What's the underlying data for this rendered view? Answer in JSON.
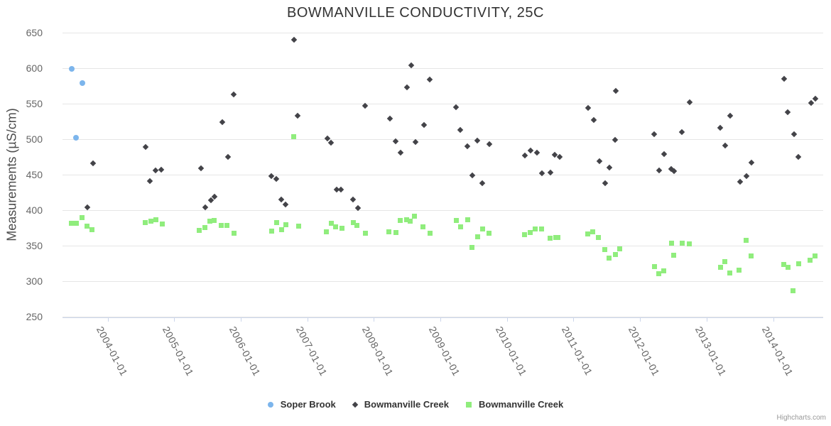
{
  "header": {
    "title": "BOWMANVILLE CONDUCTIVITY, 25C"
  },
  "y_axis": {
    "title": "Measurements (µS/cm)"
  },
  "legend": {
    "items": [
      {
        "label": "Soper Brook",
        "marker": "circle",
        "color": "#7cb5ec"
      },
      {
        "label": "Bowmanville Creek",
        "marker": "diamond",
        "color": "#434348"
      },
      {
        "label": "Bowmanville Creek",
        "marker": "square",
        "color": "#90ed7d"
      }
    ]
  },
  "credit": {
    "label": "Highcharts.com"
  },
  "chart_data": {
    "type": "scatter",
    "title": "BOWMANVILLE CONDUCTIVITY, 25C",
    "xlabel": "",
    "ylabel": "Measurements (µS/cm)",
    "ylim": [
      250,
      650
    ],
    "y_ticks": [
      650,
      600,
      550,
      500,
      450,
      400,
      350,
      300,
      250
    ],
    "x_tick_labels": [
      "2004-01-01",
      "2005-01-01",
      "2006-01-01",
      "2007-01-01",
      "2008-01-01",
      "2009-01-01",
      "2010-01-01",
      "2011-01-01",
      "2012-01-01",
      "2013-01-01",
      "2014-01-01"
    ],
    "x_unit": "decimal-year",
    "grid": true,
    "legend_position": "bottom",
    "series": [
      {
        "name": "Soper Brook",
        "marker": "circle",
        "color": "#7cb5ec",
        "points": [
          [
            2003.46,
            599
          ],
          [
            2003.53,
            502
          ],
          [
            2003.62,
            579
          ]
        ]
      },
      {
        "name": "Bowmanville Creek",
        "marker": "diamond",
        "color": "#434348",
        "points": [
          [
            2003.7,
            404
          ],
          [
            2003.78,
            466
          ],
          [
            2004.57,
            489
          ],
          [
            2004.64,
            441
          ],
          [
            2004.72,
            456
          ],
          [
            2004.81,
            457
          ],
          [
            2005.4,
            459
          ],
          [
            2005.47,
            404
          ],
          [
            2005.55,
            414
          ],
          [
            2005.61,
            419
          ],
          [
            2005.72,
            524
          ],
          [
            2005.81,
            475
          ],
          [
            2005.89,
            563
          ],
          [
            2006.46,
            448
          ],
          [
            2006.53,
            444
          ],
          [
            2006.61,
            415
          ],
          [
            2006.67,
            408
          ],
          [
            2006.8,
            640
          ],
          [
            2006.86,
            533
          ],
          [
            2007.3,
            501
          ],
          [
            2007.36,
            495
          ],
          [
            2007.44,
            429
          ],
          [
            2007.51,
            429
          ],
          [
            2007.69,
            415
          ],
          [
            2007.76,
            403
          ],
          [
            2007.87,
            547
          ],
          [
            2008.24,
            529
          ],
          [
            2008.33,
            497
          ],
          [
            2008.4,
            481
          ],
          [
            2008.5,
            573
          ],
          [
            2008.56,
            604
          ],
          [
            2008.63,
            496
          ],
          [
            2008.75,
            520
          ],
          [
            2008.84,
            584
          ],
          [
            2009.24,
            545
          ],
          [
            2009.3,
            513
          ],
          [
            2009.41,
            490
          ],
          [
            2009.48,
            449
          ],
          [
            2009.55,
            498
          ],
          [
            2009.63,
            438
          ],
          [
            2009.74,
            493
          ],
          [
            2010.27,
            477
          ],
          [
            2010.36,
            484
          ],
          [
            2010.45,
            481
          ],
          [
            2010.53,
            452
          ],
          [
            2010.65,
            453
          ],
          [
            2010.72,
            478
          ],
          [
            2010.79,
            475
          ],
          [
            2011.22,
            544
          ],
          [
            2011.31,
            527
          ],
          [
            2011.39,
            469
          ],
          [
            2011.48,
            438
          ],
          [
            2011.54,
            460
          ],
          [
            2011.63,
            499
          ],
          [
            2011.64,
            568
          ],
          [
            2012.21,
            507
          ],
          [
            2012.29,
            456
          ],
          [
            2012.36,
            479
          ],
          [
            2012.47,
            458
          ],
          [
            2012.51,
            455
          ],
          [
            2012.63,
            510
          ],
          [
            2012.75,
            552
          ],
          [
            2013.21,
            516
          ],
          [
            2013.28,
            491
          ],
          [
            2013.35,
            533
          ],
          [
            2013.5,
            440
          ],
          [
            2013.6,
            448
          ],
          [
            2013.67,
            467
          ],
          [
            2014.17,
            585
          ],
          [
            2014.22,
            538
          ],
          [
            2014.32,
            507
          ],
          [
            2014.38,
            475
          ],
          [
            2014.57,
            551
          ],
          [
            2014.64,
            557
          ]
        ]
      },
      {
        "name": "Bowmanville Creek",
        "marker": "square",
        "color": "#90ed7d",
        "points": [
          [
            2003.46,
            382
          ],
          [
            2003.53,
            382
          ],
          [
            2003.62,
            390
          ],
          [
            2003.69,
            378
          ],
          [
            2003.77,
            373
          ],
          [
            2004.57,
            383
          ],
          [
            2004.65,
            385
          ],
          [
            2004.73,
            387
          ],
          [
            2004.82,
            381
          ],
          [
            2005.38,
            372
          ],
          [
            2005.46,
            376
          ],
          [
            2005.54,
            385
          ],
          [
            2005.6,
            386
          ],
          [
            2005.71,
            379
          ],
          [
            2005.79,
            379
          ],
          [
            2005.9,
            368
          ],
          [
            2006.46,
            371
          ],
          [
            2006.54,
            383
          ],
          [
            2006.61,
            373
          ],
          [
            2006.68,
            380
          ],
          [
            2006.8,
            504
          ],
          [
            2006.87,
            378
          ],
          [
            2007.29,
            370
          ],
          [
            2007.36,
            382
          ],
          [
            2007.43,
            377
          ],
          [
            2007.52,
            375
          ],
          [
            2007.69,
            383
          ],
          [
            2007.75,
            379
          ],
          [
            2007.87,
            368
          ],
          [
            2008.23,
            370
          ],
          [
            2008.33,
            369
          ],
          [
            2008.4,
            386
          ],
          [
            2008.49,
            387
          ],
          [
            2008.55,
            385
          ],
          [
            2008.61,
            392
          ],
          [
            2008.74,
            377
          ],
          [
            2008.84,
            368
          ],
          [
            2009.24,
            386
          ],
          [
            2009.3,
            377
          ],
          [
            2009.41,
            387
          ],
          [
            2009.47,
            348
          ],
          [
            2009.56,
            363
          ],
          [
            2009.63,
            374
          ],
          [
            2009.73,
            368
          ],
          [
            2010.26,
            366
          ],
          [
            2010.35,
            369
          ],
          [
            2010.43,
            374
          ],
          [
            2010.52,
            374
          ],
          [
            2010.65,
            361
          ],
          [
            2010.73,
            362
          ],
          [
            2010.77,
            362
          ],
          [
            2011.21,
            367
          ],
          [
            2011.29,
            370
          ],
          [
            2011.37,
            362
          ],
          [
            2011.47,
            345
          ],
          [
            2011.54,
            333
          ],
          [
            2011.63,
            338
          ],
          [
            2011.7,
            346
          ],
          [
            2012.22,
            321
          ],
          [
            2012.28,
            311
          ],
          [
            2012.36,
            315
          ],
          [
            2012.47,
            354
          ],
          [
            2012.51,
            337
          ],
          [
            2012.63,
            354
          ],
          [
            2012.74,
            353
          ],
          [
            2013.21,
            320
          ],
          [
            2013.27,
            328
          ],
          [
            2013.35,
            312
          ],
          [
            2013.49,
            316
          ],
          [
            2013.59,
            358
          ],
          [
            2013.67,
            336
          ],
          [
            2014.16,
            324
          ],
          [
            2014.22,
            320
          ],
          [
            2014.3,
            287
          ],
          [
            2014.38,
            325
          ],
          [
            2014.55,
            330
          ],
          [
            2014.63,
            336
          ]
        ]
      }
    ]
  }
}
